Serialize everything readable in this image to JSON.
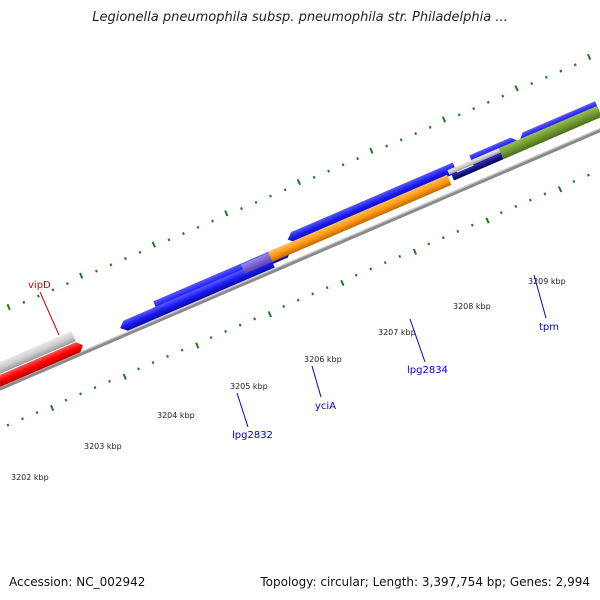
{
  "title": "Legionella pneumophila subsp. pneumophila str. Philadelphia ...",
  "footer": {
    "accession": "Accession: NC_002942",
    "topology": "Topology: circular; Length: 3,397,754 bp; Genes: 2,994"
  },
  "ticks": [
    {
      "label": "3202 kbp"
    },
    {
      "label": "3203 kbp"
    },
    {
      "label": "3204 kbp"
    },
    {
      "label": "3205 kbp"
    },
    {
      "label": "3206 kbp"
    },
    {
      "label": "3207 kbp"
    },
    {
      "label": "3208 kbp"
    },
    {
      "label": "3209 kbp"
    }
  ],
  "genes": [
    {
      "label": "vipD",
      "color": "#cc0000"
    },
    {
      "label": "lpg2832",
      "color": "#0000cc"
    },
    {
      "label": "yciA",
      "color": "#0000cc"
    },
    {
      "label": "lpg2834",
      "color": "#0000cc"
    },
    {
      "label": "tpm",
      "color": "#0000cc"
    }
  ],
  "colors": {
    "tick": "#1e7a1e",
    "backbone": "#8a8a8a",
    "cds_blue": "#1c1cf0",
    "rrna_red": "#ff0000",
    "gray_feature": "#cfcfcf",
    "orange": "#ff9a10",
    "purple": "#7a5cd6",
    "navy": "#0a0a7a",
    "olive": "#6f9a2a"
  }
}
